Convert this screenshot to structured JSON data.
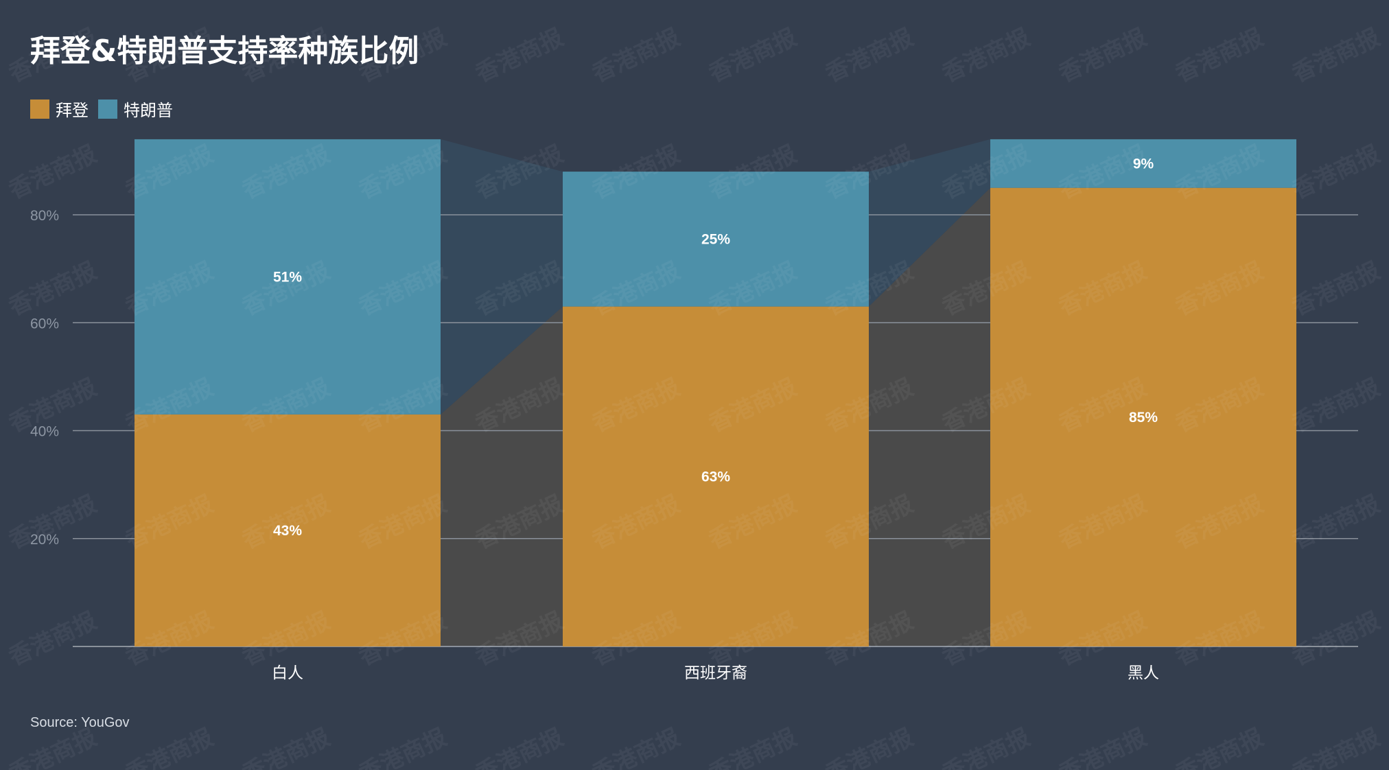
{
  "chart_data": {
    "type": "bar",
    "stacked": true,
    "title": "拜登&特朗普支持率种族比例",
    "categories": [
      "白人",
      "西班牙裔",
      "黑人"
    ],
    "series": [
      {
        "name": "拜登",
        "values": [
          43,
          63,
          85
        ],
        "color": "#c68d38"
      },
      {
        "name": "特朗普",
        "values": [
          51,
          25,
          9
        ],
        "color": "#4d90a9"
      }
    ],
    "data_labels": [
      [
        "43%",
        "63%",
        "85%"
      ],
      [
        "51%",
        "25%",
        "9%"
      ]
    ],
    "yticks": [
      "20%",
      "40%",
      "60%",
      "80%"
    ],
    "ylim": [
      0,
      100
    ],
    "grid": true,
    "legend": "top-left",
    "connector_colors": [
      "#4a4a4a",
      "#35495c"
    ]
  },
  "source": "Source: YouGov",
  "watermark": "香港商报",
  "background": "#343e4e"
}
